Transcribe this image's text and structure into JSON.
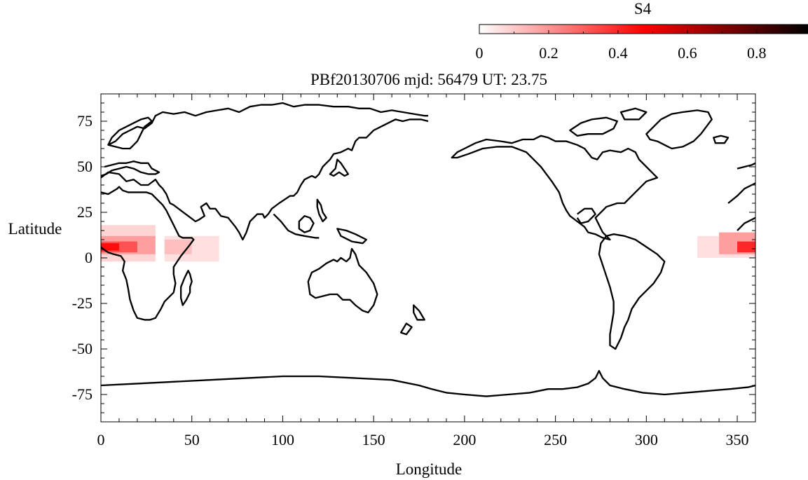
{
  "colorbar": {
    "label": "S4",
    "ticks": [
      "0",
      "0.2",
      "0.4",
      "0.6",
      "0.8"
    ],
    "range": [
      0,
      0.95
    ],
    "colors": [
      "#ffffff",
      "#ff0000",
      "#000000"
    ]
  },
  "title": "PBf20130706  mjd: 56479  UT:  23.75",
  "chart_data": {
    "type": "heatmap",
    "title": "PBf20130706  mjd: 56479  UT:  23.75",
    "xlabel": "Longitude",
    "ylabel": "Latitude",
    "xlim": [
      0,
      360
    ],
    "ylim": [
      -90,
      90
    ],
    "x_ticks": [
      "0",
      "50",
      "100",
      "150",
      "200",
      "250",
      "300",
      "350"
    ],
    "y_ticks": [
      "75",
      "50",
      "25",
      "0",
      "-25",
      "-50",
      "-75"
    ],
    "value_label": "S4",
    "cells": [
      {
        "lon0": 0,
        "lon1": 30,
        "lat0": -2,
        "lat1": 18,
        "value": 0.08
      },
      {
        "lon0": 0,
        "lon1": 30,
        "lat0": 2,
        "lat1": 12,
        "value": 0.18
      },
      {
        "lon0": 0,
        "lon1": 20,
        "lat0": 3,
        "lat1": 9,
        "value": 0.32
      },
      {
        "lon0": 0,
        "lon1": 10,
        "lat0": 4,
        "lat1": 8,
        "value": 0.45
      },
      {
        "lon0": 35,
        "lon1": 65,
        "lat0": -2,
        "lat1": 12,
        "value": 0.06
      },
      {
        "lon0": 35,
        "lon1": 50,
        "lat0": 2,
        "lat1": 10,
        "value": 0.12
      },
      {
        "lon0": 328,
        "lon1": 360,
        "lat0": 0,
        "lat1": 12,
        "value": 0.06
      },
      {
        "lon0": 340,
        "lon1": 360,
        "lat0": 2,
        "lat1": 14,
        "value": 0.18
      },
      {
        "lon0": 350,
        "lon1": 360,
        "lat0": 3,
        "lat1": 9,
        "value": 0.4
      }
    ]
  }
}
